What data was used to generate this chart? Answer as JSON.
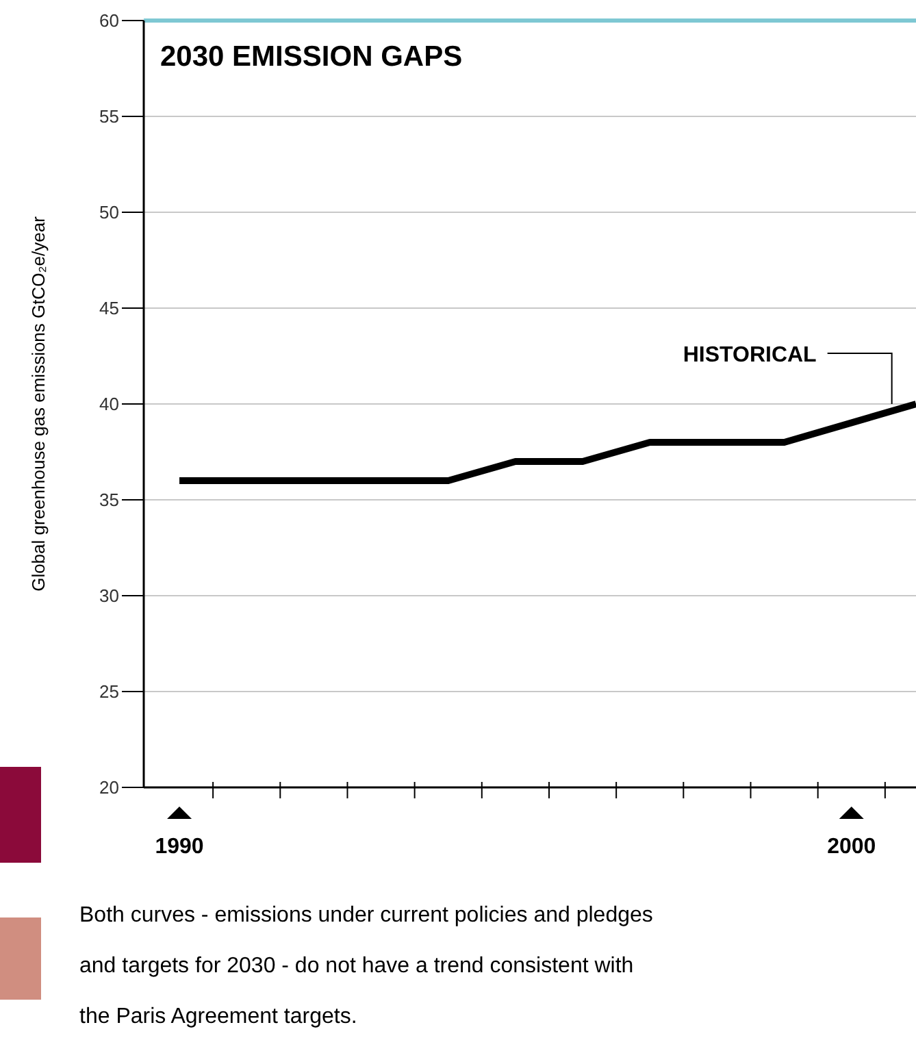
{
  "chart_data": {
    "type": "line",
    "title": "2030 EMISSION GAPS",
    "ylabel": "Global greenhouse gas emissions GtCO₂e/year",
    "x": [
      1990,
      1994,
      1995,
      1996,
      1997,
      1999,
      2000.96
    ],
    "series": [
      {
        "color": "#000000",
        "values": [
          36,
          36,
          37,
          37,
          38,
          38,
          40
        ]
      }
    ],
    "xlim": [
      1989.47,
      2000.96
    ],
    "xticks": [
      {
        "value": 1990,
        "label": "1990"
      },
      {
        "value": 1990.5,
        "label": null
      },
      {
        "value": 1991.5,
        "label": null
      },
      {
        "value": 1992.5,
        "label": null
      },
      {
        "value": 1993.5,
        "label": null
      },
      {
        "value": 1994.5,
        "label": null
      },
      {
        "value": 1995.5,
        "label": null
      },
      {
        "value": 1996.5,
        "label": null
      },
      {
        "value": 1997.5,
        "label": null
      },
      {
        "value": 1998.5,
        "label": null
      },
      {
        "value": 1999.5,
        "label": null
      },
      {
        "value": 2000,
        "label": "2000"
      },
      {
        "value": 2000.5,
        "label": null
      }
    ],
    "ylim": [
      20,
      60
    ],
    "yticks": [
      20,
      25,
      30,
      35,
      40,
      45,
      50,
      55,
      60
    ],
    "grid": "y",
    "ref_lines": [
      {
        "axis": "y",
        "value": 60,
        "color": "#7ec8d3"
      }
    ],
    "annotations": [
      {
        "text": "HISTORICAL",
        "x": 2000.6,
        "y": 40
      },
      "Both curves - emissions under current policies and pledges and targets for 2030 - do not have a trend consistent with the Paris Agreement targets."
    ]
  }
}
